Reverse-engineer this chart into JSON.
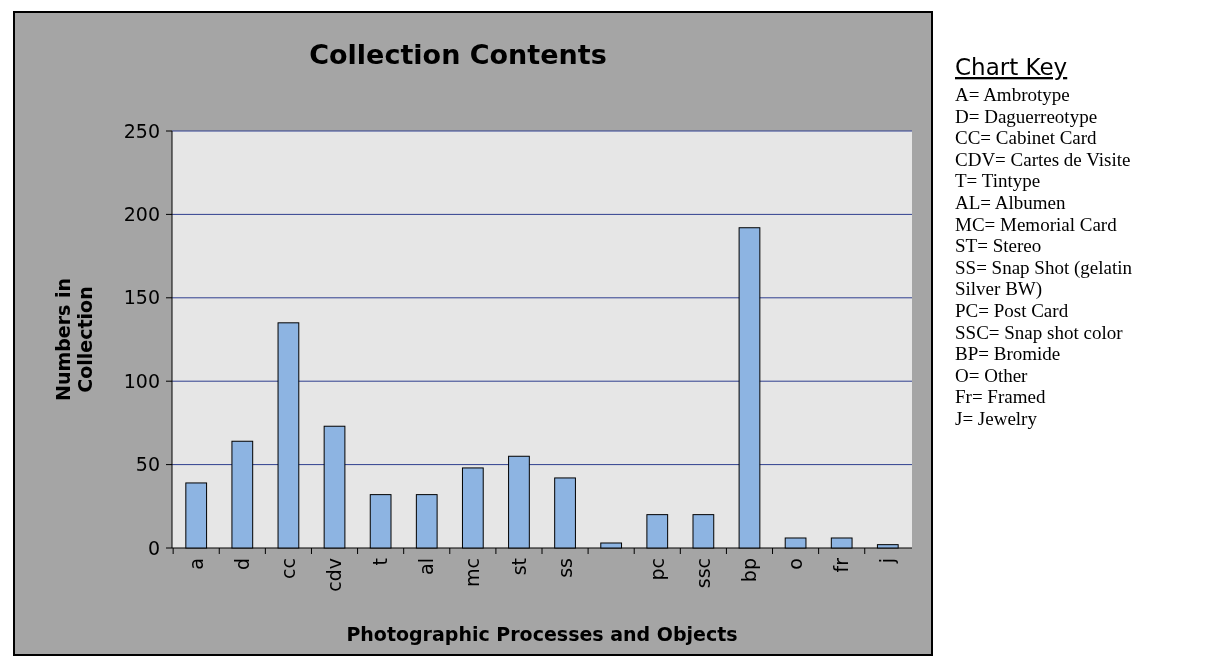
{
  "chart_data": {
    "type": "bar",
    "title": "Collection Contents",
    "xlabel": "Photographic Processes and Objects",
    "ylabel": "Numbers in Collection",
    "categories": [
      "a",
      "d",
      "cc",
      "cdv",
      "t",
      "al",
      "mc",
      "st",
      "ss",
      null,
      "pc",
      "ssc",
      "bp",
      "o",
      "fr",
      "j"
    ],
    "values": [
      39,
      64,
      135,
      73,
      32,
      32,
      48,
      55,
      42,
      3,
      20,
      20,
      192,
      6,
      6,
      2
    ],
    "color": "#8db4e2",
    "ylim": [
      0,
      250
    ],
    "yticks": [
      0,
      50,
      100,
      150,
      200,
      250
    ],
    "grid": "y",
    "annotations": [
      "Chart Key",
      "A= Ambrotype",
      "D= Daguerreotype",
      "CC= Cabinet Card",
      "CDV= Cartes de Visite",
      "T= Tintype",
      "AL= Albumen",
      "MC= Memorial Card",
      "ST= Stereo",
      "SS= Snap Shot (gelatin Silver BW)",
      "PC= Post Card",
      "SSC= Snap shot color",
      "BP= Bromide",
      "O= Other",
      "Fr= Framed",
      "J= Jewelry"
    ]
  }
}
